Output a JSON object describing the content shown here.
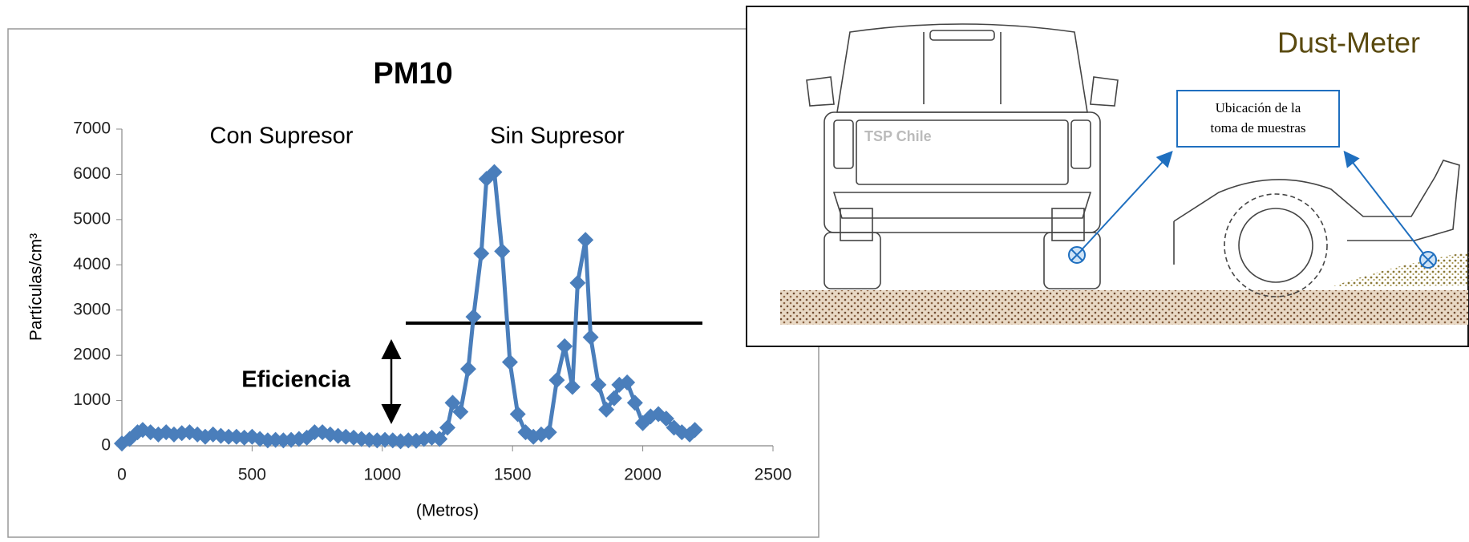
{
  "chart_data": {
    "type": "line",
    "title": "PM10",
    "y_label": "Partículas/cm³",
    "x_label": "(Metros)",
    "annotations": [
      "Con Supresor",
      "Sin Supresor",
      "Eficiencia"
    ],
    "color": "#4a7ebb",
    "x": [
      0,
      30,
      60,
      80,
      110,
      140,
      170,
      200,
      230,
      260,
      290,
      320,
      350,
      380,
      410,
      440,
      470,
      500,
      530,
      560,
      590,
      620,
      650,
      680,
      710,
      740,
      770,
      800,
      830,
      860,
      890,
      920,
      950,
      980,
      1010,
      1040,
      1070,
      1100,
      1130,
      1160,
      1190,
      1220,
      1250,
      1270,
      1300,
      1330,
      1350,
      1380,
      1400,
      1430,
      1460,
      1490,
      1520,
      1550,
      1580,
      1610,
      1640,
      1670,
      1700,
      1730,
      1750,
      1780,
      1800,
      1830,
      1860,
      1890,
      1910,
      1940,
      1970,
      2000,
      2030,
      2060,
      2090,
      2120,
      2150,
      2180,
      2200
    ],
    "values": [
      50,
      150,
      300,
      350,
      300,
      250,
      300,
      250,
      280,
      300,
      250,
      200,
      250,
      220,
      200,
      200,
      180,
      200,
      150,
      120,
      130,
      120,
      130,
      150,
      180,
      300,
      300,
      250,
      220,
      200,
      180,
      150,
      130,
      120,
      130,
      120,
      100,
      120,
      110,
      150,
      180,
      150,
      400,
      950,
      750,
      1700,
      2850,
      4250,
      5900,
      6050,
      4300,
      1850,
      700,
      300,
      200,
      250,
      300,
      1450,
      2200,
      1300,
      3600,
      4550,
      2400,
      1350,
      800,
      1050,
      1350,
      1400,
      950,
      500,
      650,
      700,
      600,
      400,
      300,
      250,
      350
    ],
    "xlim": [
      0,
      2500
    ],
    "xticks": [
      0,
      500,
      1000,
      1500,
      2000,
      2500
    ],
    "ylim": [
      0,
      7000
    ],
    "yticks": [
      0,
      1000,
      2000,
      3000,
      4000,
      5000,
      6000,
      7000
    ]
  },
  "diagram": {
    "title": "Dust-Meter",
    "callout": [
      "Ubicación de la",
      "toma de muestras"
    ],
    "brand": "TSP Chile"
  }
}
